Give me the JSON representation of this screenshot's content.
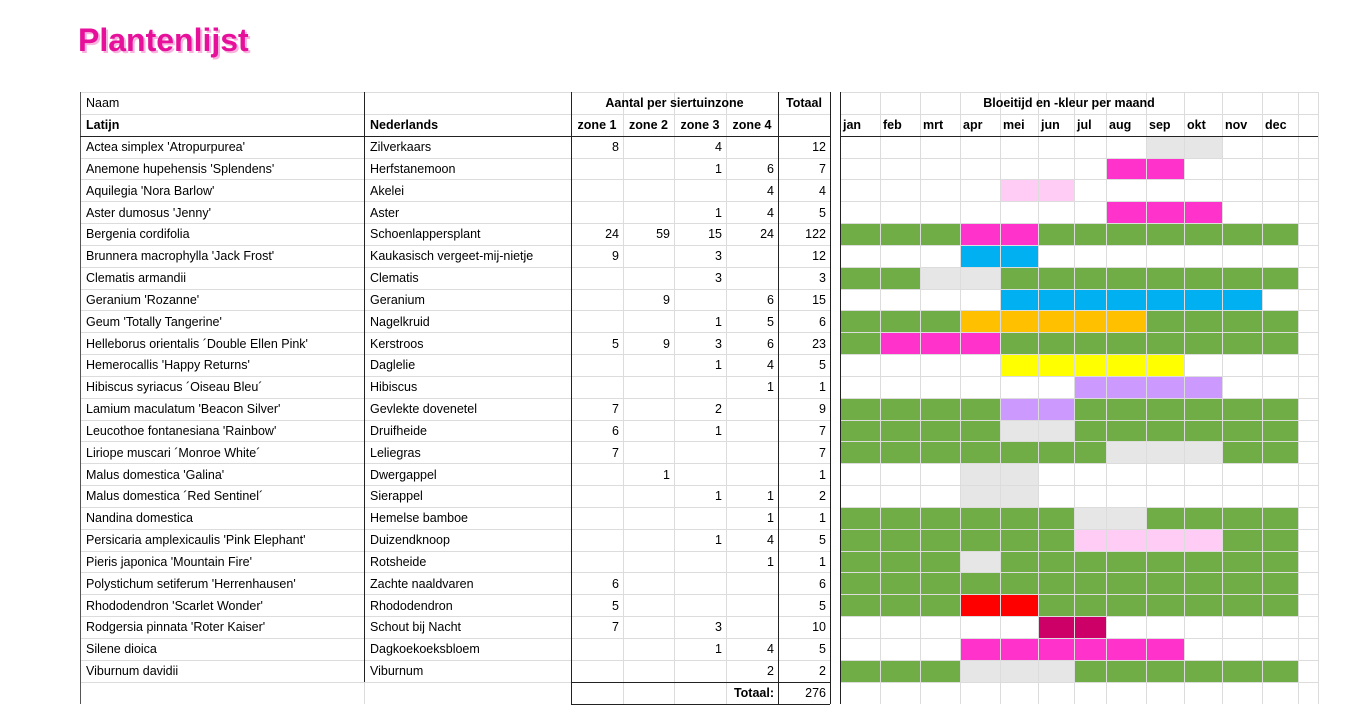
{
  "title": "Plantenlijst",
  "header": {
    "naam": "Naam",
    "latijn": "Latijn",
    "nederlands": "Nederlands",
    "zones_title": "Aantal per siertuinzone",
    "zones": [
      "zone 1",
      "zone 2",
      "zone 3",
      "zone 4"
    ],
    "totaal": "Totaal",
    "bloom_title": "Bloeitijd en -kleur per maand",
    "months": [
      "jan",
      "feb",
      "mrt",
      "apr",
      "mei",
      "jun",
      "jul",
      "aug",
      "sep",
      "okt",
      "nov",
      "dec"
    ]
  },
  "rows": [
    {
      "latin": "Actea simplex 'Atropurpurea'",
      "dutch": "Zilverkaars",
      "zones": [
        8,
        null,
        4,
        null
      ],
      "total": 12,
      "bloom": [
        null,
        null,
        null,
        null,
        null,
        null,
        null,
        null,
        "#e6e6e6",
        "#e6e6e6",
        null,
        null
      ]
    },
    {
      "latin": "Anemone hupehensis 'Splendens'",
      "dutch": "Herfstanemoon",
      "zones": [
        null,
        null,
        1,
        6
      ],
      "total": 7,
      "bloom": [
        null,
        null,
        null,
        null,
        null,
        null,
        null,
        "#ff33cc",
        "#ff33cc",
        null,
        null,
        null
      ]
    },
    {
      "latin": "Aquilegia 'Nora Barlow'",
      "dutch": "Akelei",
      "zones": [
        null,
        null,
        null,
        4
      ],
      "total": 4,
      "bloom": [
        null,
        null,
        null,
        null,
        "#ffccf5",
        "#ffccf5",
        null,
        null,
        null,
        null,
        null,
        null
      ]
    },
    {
      "latin": "Aster dumosus 'Jenny'",
      "dutch": "Aster",
      "zones": [
        null,
        null,
        1,
        4
      ],
      "total": 5,
      "bloom": [
        null,
        null,
        null,
        null,
        null,
        null,
        null,
        "#ff33cc",
        "#ff33cc",
        "#ff33cc",
        null,
        null
      ]
    },
    {
      "latin": "Bergenia cordifolia",
      "dutch": "Schoenlappersplant",
      "zones": [
        24,
        59,
        15,
        24
      ],
      "total": 122,
      "bloom": [
        "#70ad47",
        "#70ad47",
        "#70ad47",
        "#ff33cc",
        "#ff33cc",
        "#70ad47",
        "#70ad47",
        "#70ad47",
        "#70ad47",
        "#70ad47",
        "#70ad47",
        "#70ad47"
      ]
    },
    {
      "latin": "Brunnera macrophylla 'Jack Frost'",
      "dutch": "Kaukasisch vergeet-mij-nietje",
      "zones": [
        9,
        null,
        3,
        null
      ],
      "total": 12,
      "bloom": [
        null,
        null,
        null,
        "#00b0f0",
        "#00b0f0",
        null,
        null,
        null,
        null,
        null,
        null,
        null
      ]
    },
    {
      "latin": "Clematis armandii",
      "dutch": "Clematis",
      "zones": [
        null,
        null,
        3,
        null
      ],
      "total": 3,
      "bloom": [
        "#70ad47",
        "#70ad47",
        "#e6e6e6",
        "#e6e6e6",
        "#70ad47",
        "#70ad47",
        "#70ad47",
        "#70ad47",
        "#70ad47",
        "#70ad47",
        "#70ad47",
        "#70ad47"
      ]
    },
    {
      "latin": "Geranium 'Rozanne'",
      "dutch": "Geranium",
      "zones": [
        null,
        9,
        null,
        6
      ],
      "total": 15,
      "bloom": [
        null,
        null,
        null,
        null,
        "#00b0f0",
        "#00b0f0",
        "#00b0f0",
        "#00b0f0",
        "#00b0f0",
        "#00b0f0",
        "#00b0f0",
        null
      ]
    },
    {
      "latin": "Geum 'Totally Tangerine'",
      "dutch": "Nagelkruid",
      "zones": [
        null,
        null,
        1,
        5
      ],
      "total": 6,
      "bloom": [
        "#70ad47",
        "#70ad47",
        "#70ad47",
        "#ffc000",
        "#ffc000",
        "#ffc000",
        "#ffc000",
        "#ffc000",
        "#70ad47",
        "#70ad47",
        "#70ad47",
        "#70ad47"
      ]
    },
    {
      "latin": "Helleborus orientalis ´Double Ellen Pink'",
      "dutch": "Kerstroos",
      "zones": [
        5,
        9,
        3,
        6
      ],
      "total": 23,
      "bloom": [
        "#70ad47",
        "#ff33cc",
        "#ff33cc",
        "#ff33cc",
        "#70ad47",
        "#70ad47",
        "#70ad47",
        "#70ad47",
        "#70ad47",
        "#70ad47",
        "#70ad47",
        "#70ad47"
      ]
    },
    {
      "latin": "Hemerocallis 'Happy Returns'",
      "dutch": "Daglelie",
      "zones": [
        null,
        null,
        1,
        4
      ],
      "total": 5,
      "bloom": [
        null,
        null,
        null,
        null,
        "#ffff00",
        "#ffff00",
        "#ffff00",
        "#ffff00",
        "#ffff00",
        null,
        null,
        null
      ]
    },
    {
      "latin": "Hibiscus syriacus ´Oiseau Bleu´",
      "dutch": "Hibiscus",
      "zones": [
        null,
        null,
        null,
        1
      ],
      "total": 1,
      "bloom": [
        null,
        null,
        null,
        null,
        null,
        null,
        "#cc99ff",
        "#cc99ff",
        "#cc99ff",
        "#cc99ff",
        null,
        null
      ]
    },
    {
      "latin": "Lamium maculatum 'Beacon Silver'",
      "dutch": "Gevlekte dovenetel",
      "zones": [
        7,
        null,
        2,
        null
      ],
      "total": 9,
      "bloom": [
        "#70ad47",
        "#70ad47",
        "#70ad47",
        "#70ad47",
        "#cc99ff",
        "#cc99ff",
        "#70ad47",
        "#70ad47",
        "#70ad47",
        "#70ad47",
        "#70ad47",
        "#70ad47"
      ]
    },
    {
      "latin": "Leucothoe fontanesiana 'Rainbow'",
      "dutch": "Druifheide",
      "zones": [
        6,
        null,
        1,
        null
      ],
      "total": 7,
      "bloom": [
        "#70ad47",
        "#70ad47",
        "#70ad47",
        "#70ad47",
        "#e6e6e6",
        "#e6e6e6",
        "#70ad47",
        "#70ad47",
        "#70ad47",
        "#70ad47",
        "#70ad47",
        "#70ad47"
      ]
    },
    {
      "latin": "Liriope muscari ´Monroe White´",
      "dutch": "Leliegras",
      "zones": [
        7,
        null,
        null,
        null
      ],
      "total": 7,
      "bloom": [
        "#70ad47",
        "#70ad47",
        "#70ad47",
        "#70ad47",
        "#70ad47",
        "#70ad47",
        "#70ad47",
        "#e6e6e6",
        "#e6e6e6",
        "#e6e6e6",
        "#70ad47",
        "#70ad47"
      ]
    },
    {
      "latin": "Malus domestica 'Galina'",
      "dutch": "Dwergappel",
      "zones": [
        null,
        1,
        null,
        null
      ],
      "total": 1,
      "bloom": [
        null,
        null,
        null,
        "#e6e6e6",
        "#e6e6e6",
        null,
        null,
        null,
        null,
        null,
        null,
        null
      ]
    },
    {
      "latin": "Malus domestica ´Red Sentinel´",
      "dutch": "Sierappel",
      "zones": [
        null,
        null,
        1,
        1
      ],
      "total": 2,
      "bloom": [
        null,
        null,
        null,
        "#e6e6e6",
        "#e6e6e6",
        null,
        null,
        null,
        null,
        null,
        null,
        null
      ]
    },
    {
      "latin": "Nandina domestica",
      "dutch": "Hemelse bamboe",
      "zones": [
        null,
        null,
        null,
        1
      ],
      "total": 1,
      "bloom": [
        "#70ad47",
        "#70ad47",
        "#70ad47",
        "#70ad47",
        "#70ad47",
        "#70ad47",
        "#e6e6e6",
        "#e6e6e6",
        "#70ad47",
        "#70ad47",
        "#70ad47",
        "#70ad47"
      ]
    },
    {
      "latin": "Persicaria amplexicaulis 'Pink Elephant'",
      "dutch": "Duizendknoop",
      "zones": [
        null,
        null,
        1,
        4
      ],
      "total": 5,
      "bloom": [
        "#70ad47",
        "#70ad47",
        "#70ad47",
        "#70ad47",
        "#70ad47",
        "#70ad47",
        "#ffccf5",
        "#ffccf5",
        "#ffccf5",
        "#ffccf5",
        "#70ad47",
        "#70ad47"
      ]
    },
    {
      "latin": "Pieris japonica 'Mountain Fire'",
      "dutch": "Rotsheide",
      "zones": [
        null,
        null,
        null,
        1
      ],
      "total": 1,
      "bloom": [
        "#70ad47",
        "#70ad47",
        "#70ad47",
        "#e6e6e6",
        "#70ad47",
        "#70ad47",
        "#70ad47",
        "#70ad47",
        "#70ad47",
        "#70ad47",
        "#70ad47",
        "#70ad47"
      ]
    },
    {
      "latin": "Polystichum setiferum 'Herrenhausen'",
      "dutch": "Zachte naaldvaren",
      "zones": [
        6,
        null,
        null,
        null
      ],
      "total": 6,
      "bloom": [
        "#70ad47",
        "#70ad47",
        "#70ad47",
        "#70ad47",
        "#70ad47",
        "#70ad47",
        "#70ad47",
        "#70ad47",
        "#70ad47",
        "#70ad47",
        "#70ad47",
        "#70ad47"
      ]
    },
    {
      "latin": "Rhododendron 'Scarlet Wonder'",
      "dutch": "Rhododendron",
      "zones": [
        5,
        null,
        null,
        null
      ],
      "total": 5,
      "bloom": [
        "#70ad47",
        "#70ad47",
        "#70ad47",
        "#ff0000",
        "#ff0000",
        "#70ad47",
        "#70ad47",
        "#70ad47",
        "#70ad47",
        "#70ad47",
        "#70ad47",
        "#70ad47"
      ]
    },
    {
      "latin": "Rodgersia pinnata 'Roter Kaiser'",
      "dutch": "Schout bij Nacht",
      "zones": [
        7,
        null,
        3,
        null
      ],
      "total": 10,
      "bloom": [
        null,
        null,
        null,
        null,
        null,
        "#cc0066",
        "#cc0066",
        null,
        null,
        null,
        null,
        null
      ]
    },
    {
      "latin": "Silene dioica",
      "dutch": "Dagkoekoeksbloem",
      "zones": [
        null,
        null,
        1,
        4
      ],
      "total": 5,
      "bloom": [
        null,
        null,
        null,
        "#ff33cc",
        "#ff33cc",
        "#ff33cc",
        "#ff33cc",
        "#ff33cc",
        "#ff33cc",
        null,
        null,
        null
      ]
    },
    {
      "latin": "Viburnum davidii",
      "dutch": "Viburnum",
      "zones": [
        null,
        null,
        null,
        2
      ],
      "total": 2,
      "bloom": [
        "#70ad47",
        "#70ad47",
        "#70ad47",
        "#e6e6e6",
        "#e6e6e6",
        "#e6e6e6",
        "#70ad47",
        "#70ad47",
        "#70ad47",
        "#70ad47",
        "#70ad47",
        "#70ad47"
      ]
    }
  ],
  "footer": {
    "label": "Totaal:",
    "total": 276
  }
}
